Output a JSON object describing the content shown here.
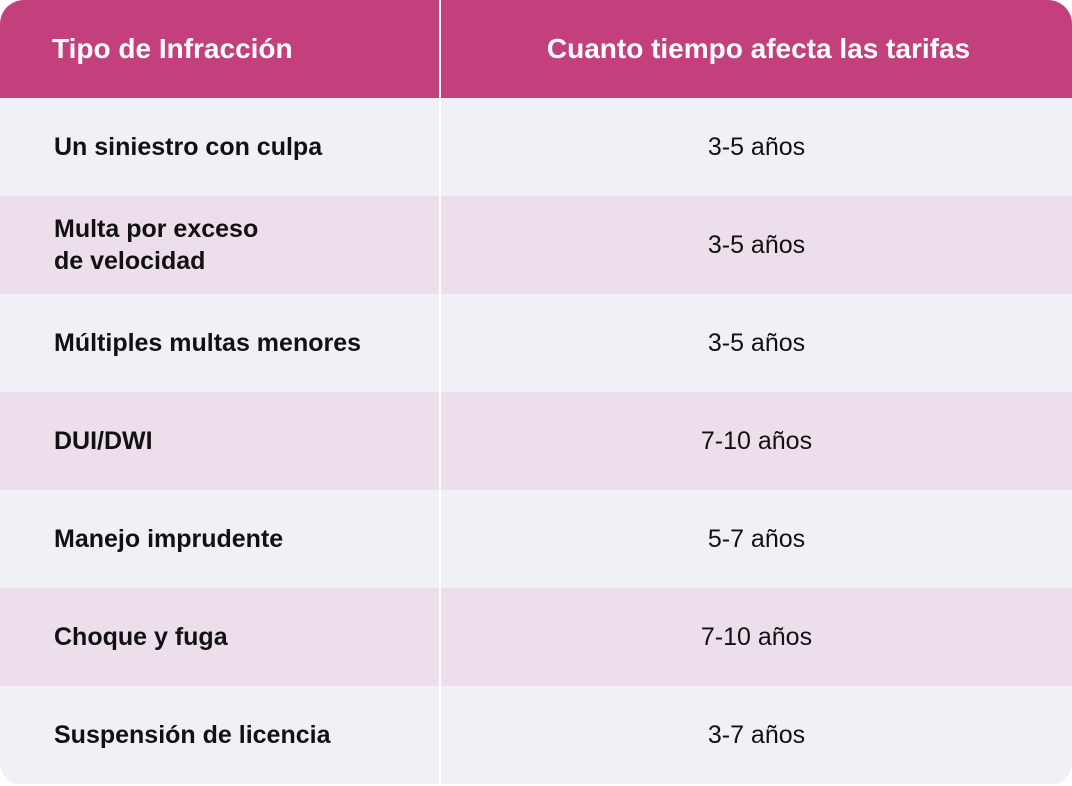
{
  "header": {
    "col1": "Tipo de Infracción",
    "col2": "Cuanto tiempo afecta las tarifas"
  },
  "colors": {
    "header_bg": "#c4407c",
    "row_odd": "#f0f1f6",
    "row_even": "#ecdeeb"
  },
  "rows": [
    {
      "infraction": "Un siniestro con culpa",
      "duration": "3-5 años"
    },
    {
      "infraction": "Multa por exceso\nde velocidad",
      "duration": "3-5 años"
    },
    {
      "infraction": "Múltiples multas menores",
      "duration": "3-5 años"
    },
    {
      "infraction": "DUI/DWI",
      "duration": "7-10 años"
    },
    {
      "infraction": "Manejo imprudente",
      "duration": "5-7 años"
    },
    {
      "infraction": "Choque y fuga",
      "duration": "7-10 años"
    },
    {
      "infraction": "Suspensión de licencia",
      "duration": "3-7 años"
    }
  ]
}
